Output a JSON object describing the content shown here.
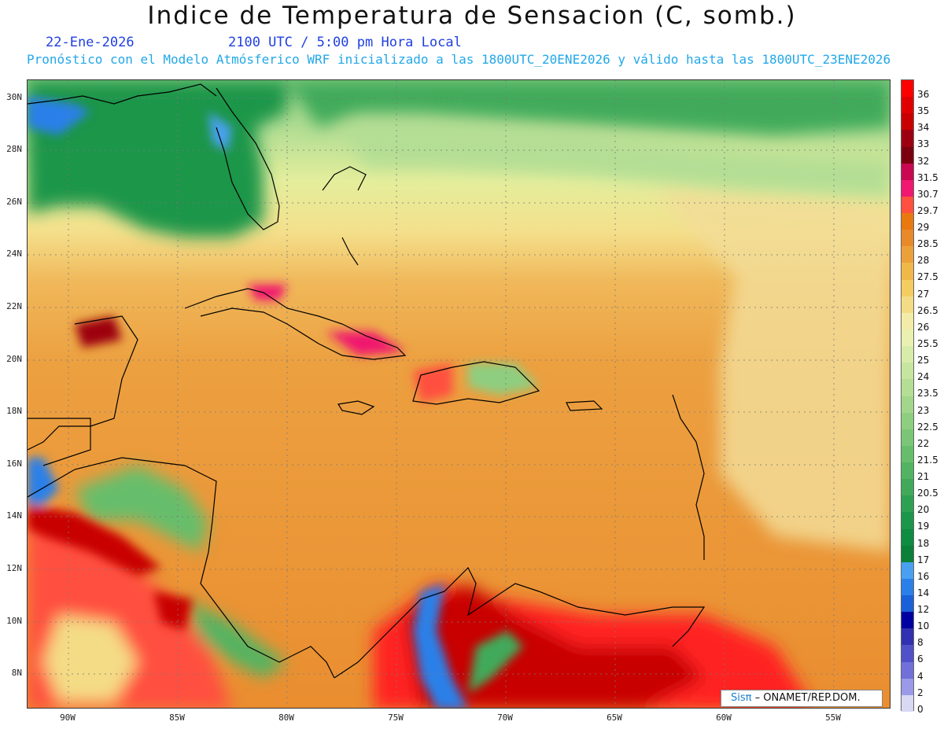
{
  "header": {
    "title": "Indice de Temperatura de Sensacion (C, somb.)",
    "date": "22-Ene-2026",
    "time": "2100 UTC / 5:00 pm Hora Local",
    "subtitle": "Pronóstico con el Modelo Atmósferico WRF inicializado a las 1800UTC_20ENE2026 y válido hasta las  1800UTC_23ENE2026"
  },
  "map": {
    "lat_labels": [
      "30N",
      "28N",
      "26N",
      "24N",
      "22N",
      "20N",
      "18N",
      "16N",
      "14N",
      "12N",
      "10N",
      "8N"
    ],
    "lon_labels": [
      "90W",
      "85W",
      "80W",
      "75W",
      "70W",
      "65W",
      "60W",
      "55W"
    ],
    "land_colors": {
      "coast": "#000000",
      "grid": "#8a8a8a"
    }
  },
  "colorbar": {
    "labels": [
      "36",
      "35",
      "34",
      "33",
      "32",
      "31.5",
      "30.7",
      "29.7",
      "29",
      "28.5",
      "28",
      "27.5",
      "27",
      "26.5",
      "26",
      "25.5",
      "25",
      "24",
      "23.5",
      "23",
      "22.5",
      "22",
      "21.5",
      "21",
      "20.5",
      "20",
      "19",
      "18",
      "17",
      "16",
      "14",
      "12",
      "10",
      "8",
      "6",
      "4",
      "2",
      "0"
    ],
    "colors": [
      "#ff0000",
      "#e00000",
      "#c80000",
      "#9c0010",
      "#7a0010",
      "#c80850",
      "#f01870",
      "#ff5040",
      "#e87810",
      "#e88a2a",
      "#eca03a",
      "#f0b848",
      "#f4cc60",
      "#f4dc86",
      "#f2eca8",
      "#eaf0b0",
      "#d8ecaa",
      "#c6e6a0",
      "#b4de94",
      "#a2d68a",
      "#8ece80",
      "#7ac676",
      "#66be6c",
      "#52b462",
      "#40aa5a",
      "#2ea052",
      "#1c964a",
      "#0e8c42",
      "#0a8038",
      "#4aa0f0",
      "#2a80e8",
      "#1a60d8",
      "#0000a0",
      "#3030b0",
      "#5050c8",
      "#7070d8",
      "#9a9ae8",
      "#d8d8f4"
    ]
  },
  "credit": {
    "sis": "Sisπ",
    "text": "– ONAMET/REP.DOM."
  }
}
